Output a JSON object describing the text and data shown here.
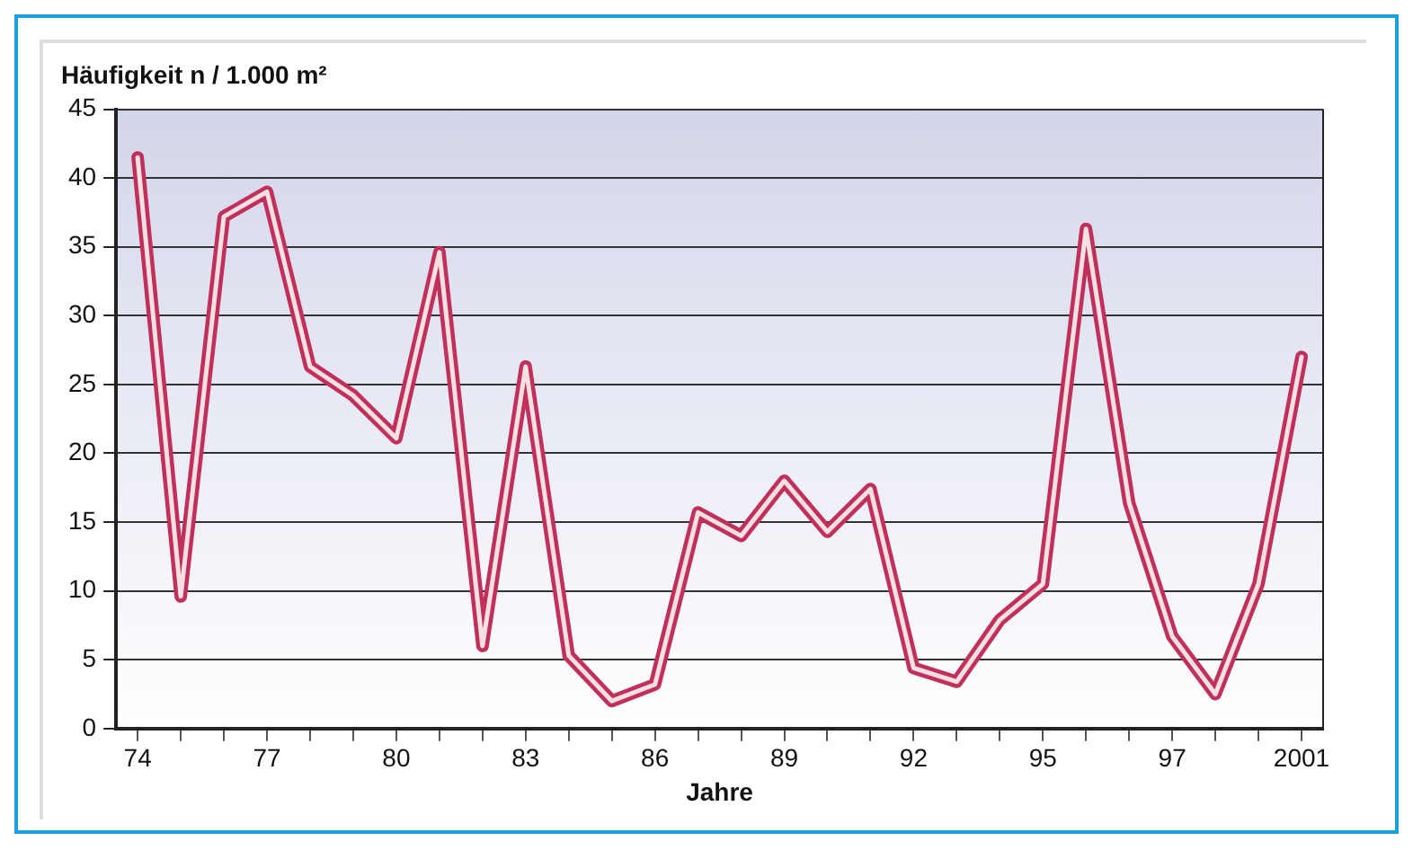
{
  "chart_data": {
    "type": "line",
    "ylabel": "Häufigkeit n / 1.000 m²",
    "xlabel": "Jahre",
    "categories": [
      "74",
      null,
      null,
      "77",
      null,
      null,
      "80",
      null,
      null,
      "83",
      null,
      null,
      "86",
      null,
      null,
      "89",
      null,
      null,
      "92",
      null,
      null,
      "95",
      null,
      null,
      "97",
      null,
      null,
      "2001"
    ],
    "series": [
      {
        "color": "#c0305a",
        "values": [
          41.5,
          9.6,
          37.2,
          39,
          26.3,
          24.2,
          21.1,
          34.6,
          6,
          26.3,
          5.3,
          2,
          3.2,
          15.7,
          14,
          18,
          14.3,
          17.4,
          4.4,
          3.4,
          7.9,
          10.5,
          36.3,
          16.4,
          6.7,
          2.5,
          10.5,
          27
        ]
      }
    ],
    "ylim": [
      0,
      45
    ],
    "yticks": [
      0,
      5,
      10,
      15,
      20,
      25,
      30,
      35,
      40,
      45
    ],
    "grid": "y",
    "legend": false,
    "marker": "none",
    "line_style": "solid"
  }
}
